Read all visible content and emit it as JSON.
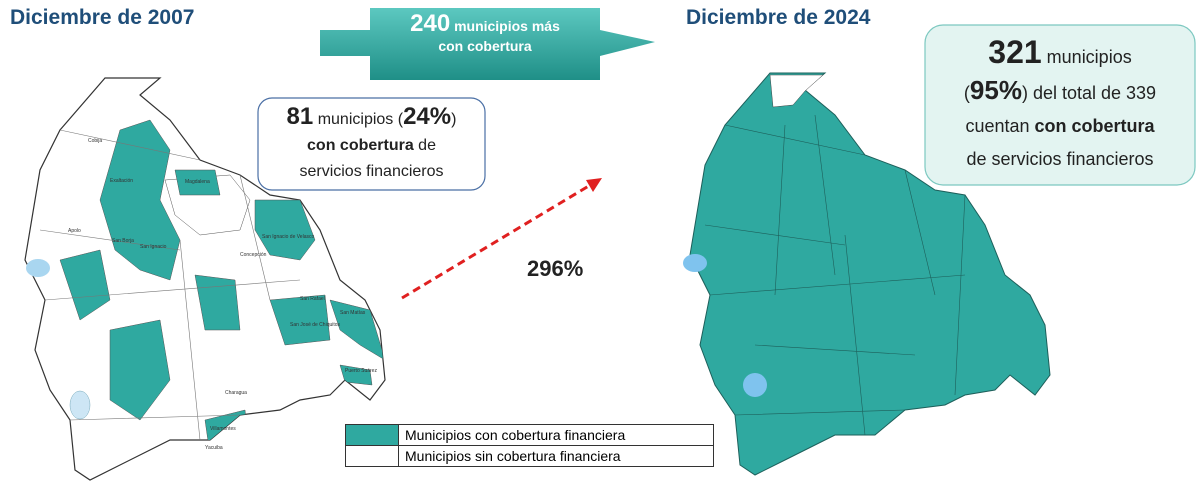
{
  "header": {
    "left_title": "Diciembre de 2007",
    "right_title": "Diciembre de 2024"
  },
  "banner": {
    "number": "240",
    "line1": "municipios más",
    "line2": "con cobertura"
  },
  "callout_2007": {
    "number": "81",
    "text1": "municipios (",
    "percent": "24%",
    "text2": ")",
    "bold": "con cobertura",
    "text3": "de",
    "line3": "servicios financieros"
  },
  "callout_2024": {
    "number": "321",
    "text1": "municipios",
    "open": "(",
    "percent": "95%",
    "text2": ") del total de 339",
    "text3": "cuentan",
    "bold": "con cobertura",
    "line4": "de servicios financieros"
  },
  "growth_label": "296%",
  "map_labels": [
    "Exaltación",
    "Magdalena",
    "San Borja",
    "San Ignacio",
    "Concepción",
    "San Ignacio de Velasco",
    "San Matías",
    "San Rafael",
    "San José de Chiquitos",
    "Charagua",
    "Puerto Suárez",
    "Villamontes",
    "Yacuiba",
    "Cobija",
    "Apolo"
  ],
  "legend": {
    "items": [
      {
        "label": "Municipios con cobertura financiera",
        "color": "#2fa9a0"
      },
      {
        "label": "Municipios sin cobertura financiera",
        "color": "#ffffff"
      }
    ]
  }
}
